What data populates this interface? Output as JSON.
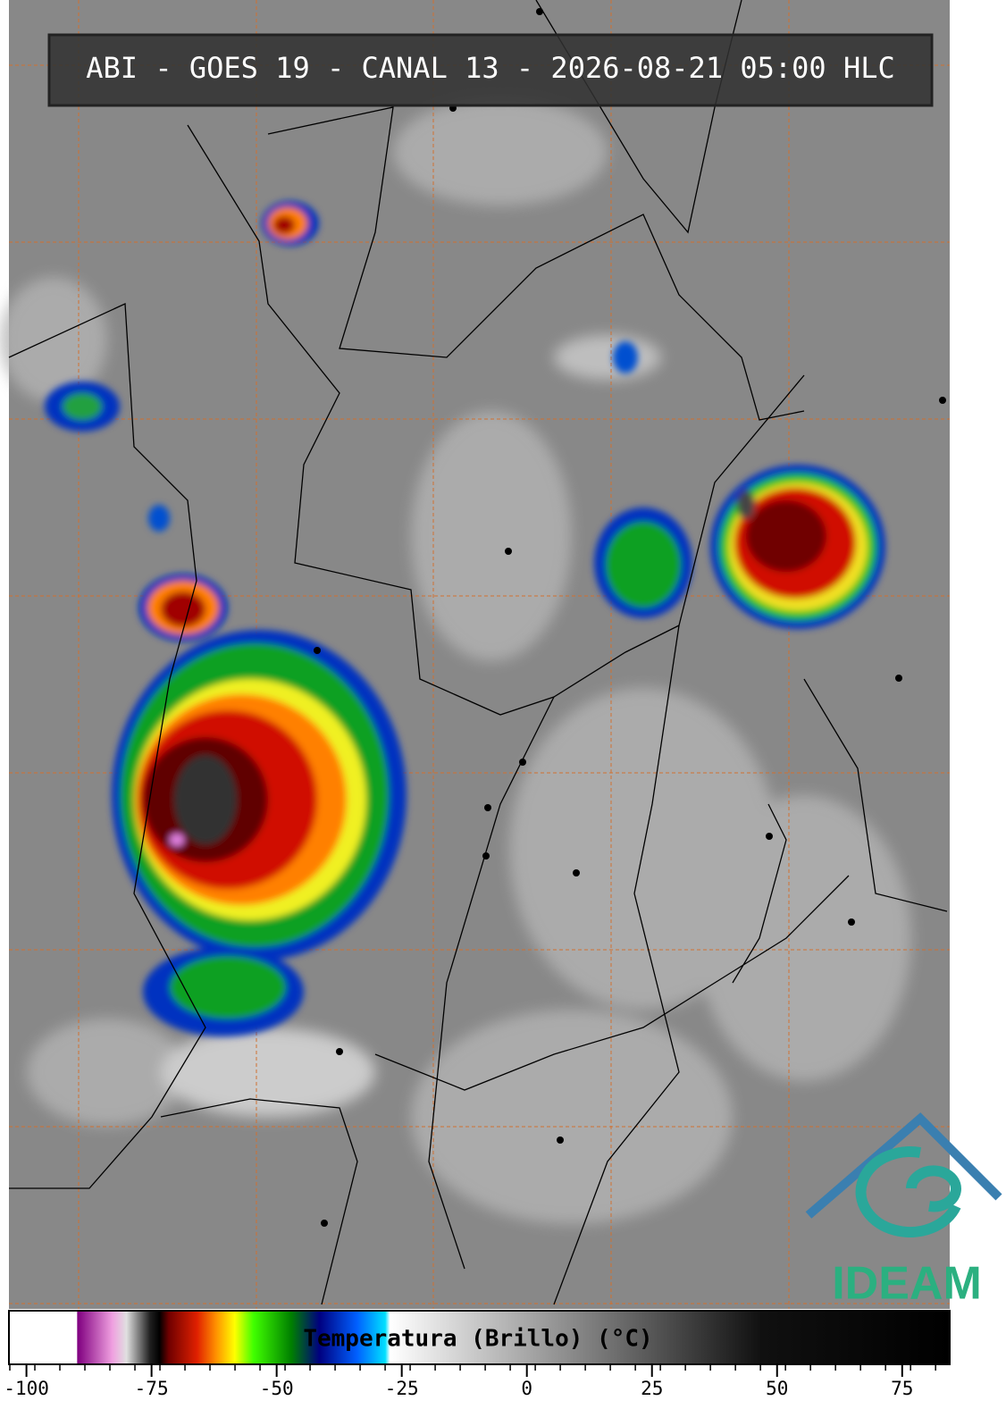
{
  "header": {
    "title": "ABI - GOES 19 - CANAL 13 - 2026-08-21 05:00 HLC"
  },
  "colorbar": {
    "label": "Temperatura (Brillo) (°C)",
    "xlim": [
      -103.5,
      84.5
    ],
    "xticks": [
      -100,
      -75,
      -50,
      -25,
      0,
      25,
      50,
      75
    ]
  },
  "logo": {
    "text": "IDEAM"
  }
}
